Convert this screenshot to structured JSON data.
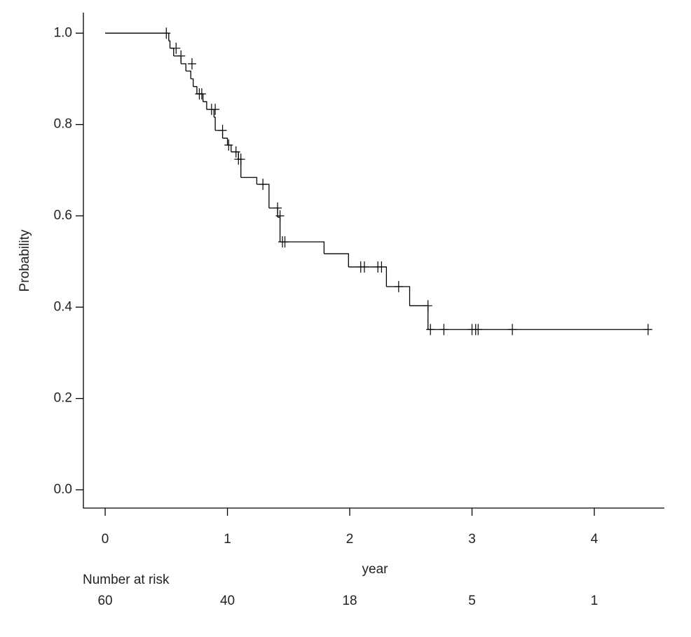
{
  "chart_data": {
    "type": "step",
    "x_label": "year",
    "y_label": "Probability",
    "xlim": [
      -0.178,
      4.573
    ],
    "ylim": [
      -0.04,
      1.045
    ],
    "xticks": [
      0,
      1,
      2,
      3,
      4
    ],
    "yticks": [
      {
        "value": 0,
        "label": "0.0"
      },
      {
        "value": 0.2,
        "label": "0.2"
      },
      {
        "value": 0.4,
        "label": "0.4"
      },
      {
        "value": 0.6,
        "label": "0.6"
      },
      {
        "value": 0.8,
        "label": "0.8"
      },
      {
        "value": 1,
        "label": "1.0"
      }
    ],
    "grid": false,
    "color": "#000000",
    "x": [
      0,
      0.52,
      0.53,
      0.56,
      0.62,
      0.66,
      0.7,
      0.72,
      0.75,
      0.8,
      0.83,
      0.89,
      0.9,
      0.96,
      1.0,
      1.03,
      1.09,
      1.11,
      1.24,
      1.34,
      1.41,
      1.43,
      1.79,
      1.99,
      2.3,
      2.49,
      2.64,
      4.44
    ],
    "values": [
      1.0,
      0.983,
      0.967,
      0.95,
      0.933,
      0.917,
      0.9,
      0.883,
      0.867,
      0.85,
      0.833,
      0.816,
      0.787,
      0.77,
      0.755,
      0.74,
      0.724,
      0.684,
      0.669,
      0.617,
      0.597,
      0.543,
      0.517,
      0.488,
      0.445,
      0.403,
      0.351,
      0.351
    ],
    "censored": {
      "x": [
        0.5,
        0.58,
        0.62,
        0.71,
        0.77,
        0.79,
        0.87,
        0.9,
        0.96,
        1.01,
        1.07,
        1.09,
        1.11,
        1.29,
        1.41,
        1.43,
        1.45,
        1.47,
        2.09,
        2.12,
        2.23,
        2.26,
        2.4,
        2.64,
        2.66,
        2.77,
        3.0,
        3.03,
        3.05,
        3.33,
        4.44
      ],
      "values": [
        1.0,
        0.967,
        0.95,
        0.933,
        0.867,
        0.867,
        0.833,
        0.833,
        0.787,
        0.755,
        0.74,
        0.724,
        0.724,
        0.669,
        0.617,
        0.6,
        0.543,
        0.543,
        0.488,
        0.488,
        0.488,
        0.488,
        0.445,
        0.403,
        0.351,
        0.351,
        0.351,
        0.351,
        0.351,
        0.351,
        0.351
      ]
    },
    "number_at_risk": {
      "label": "Number at risk",
      "times": [
        0,
        1,
        2,
        3,
        4
      ],
      "values": [
        60,
        40,
        18,
        5,
        1
      ]
    }
  }
}
